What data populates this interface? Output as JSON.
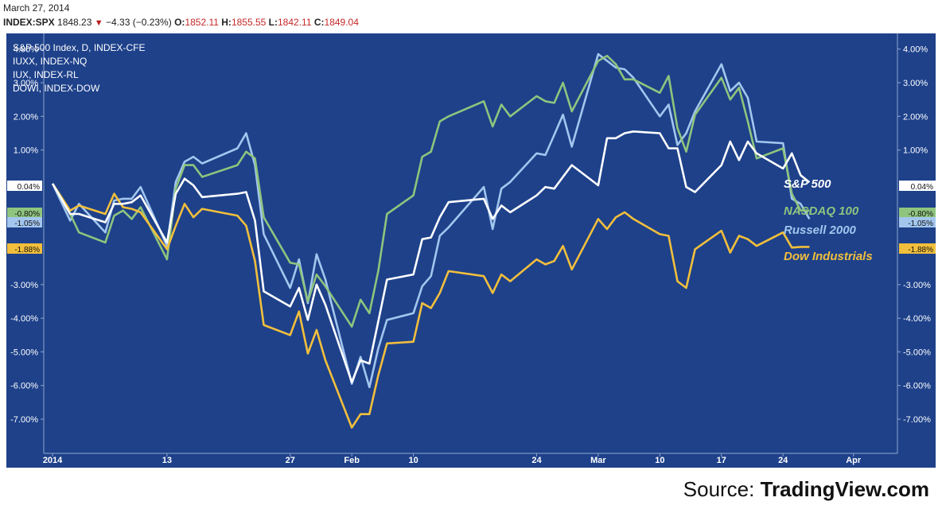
{
  "header": {
    "date": "March 27, 2014",
    "symbol": "INDEX:SPX",
    "last": "1848.23",
    "change": "−4.33 (−0.23%)",
    "open_label": "O:",
    "open": "1852.11",
    "high_label": "H:",
    "high": "1855.55",
    "low_label": "L:",
    "low": "1842.11",
    "close_label": "C:",
    "close": "1849.04"
  },
  "source": {
    "prefix": "Source: ",
    "name": "TradingView.com"
  },
  "colors": {
    "background": "#1e418a",
    "sp500": "#ffffff",
    "nasdaq": "#8fc47e",
    "russell": "#a3c6ef",
    "dow": "#f2bf3c"
  },
  "chart_data": {
    "type": "line",
    "legend_placement": "top-left",
    "legend": [
      "S&P 500 Index, D, INDEX-CFE",
      "IUXX, INDEX-NQ",
      "IUX, INDEX-RL",
      "DOWI, INDEX-DOW"
    ],
    "series_labels_placement": "right",
    "ylim": [
      -8.2,
      4.5
    ],
    "y_ticks": [
      4,
      3,
      2,
      1,
      -3,
      -4,
      -5,
      -6,
      -7
    ],
    "y_tick_labels": [
      "4.00%",
      "3.00%",
      "2.00%",
      "1.00%",
      "-3.00%",
      "-4.00%",
      "-5.00%",
      "-6.00%",
      "-7.00%"
    ],
    "x_tick_labels": [
      {
        "label": "2014",
        "date": "2013-12-31"
      },
      {
        "label": "13",
        "date": "2014-01-13"
      },
      {
        "label": "27",
        "date": "2014-01-27"
      },
      {
        "label": "Feb",
        "date": "2014-02-03"
      },
      {
        "label": "10",
        "date": "2014-02-10"
      },
      {
        "label": "24",
        "date": "2014-02-24"
      },
      {
        "label": "Mar",
        "date": "2014-03-03"
      },
      {
        "label": "10",
        "date": "2014-03-10"
      },
      {
        "label": "17",
        "date": "2014-03-17"
      },
      {
        "label": "24",
        "date": "2014-03-24"
      },
      {
        "label": "Apr",
        "date": "2014-04-01"
      }
    ],
    "xlim": [
      "2013-12-30",
      "2014-04-06"
    ],
    "x": [
      "2013-12-31",
      "2014-01-02",
      "2014-01-03",
      "2014-01-06",
      "2014-01-07",
      "2014-01-08",
      "2014-01-09",
      "2014-01-10",
      "2014-01-13",
      "2014-01-14",
      "2014-01-15",
      "2014-01-16",
      "2014-01-17",
      "2014-01-21",
      "2014-01-22",
      "2014-01-23",
      "2014-01-24",
      "2014-01-27",
      "2014-01-28",
      "2014-01-29",
      "2014-01-30",
      "2014-01-31",
      "2014-02-03",
      "2014-02-04",
      "2014-02-05",
      "2014-02-06",
      "2014-02-07",
      "2014-02-10",
      "2014-02-11",
      "2014-02-12",
      "2014-02-13",
      "2014-02-14",
      "2014-02-18",
      "2014-02-19",
      "2014-02-20",
      "2014-02-21",
      "2014-02-24",
      "2014-02-25",
      "2014-02-26",
      "2014-02-27",
      "2014-02-28",
      "2014-03-03",
      "2014-03-04",
      "2014-03-05",
      "2014-03-06",
      "2014-03-07",
      "2014-03-10",
      "2014-03-11",
      "2014-03-12",
      "2014-03-13",
      "2014-03-14",
      "2014-03-17",
      "2014-03-18",
      "2014-03-19",
      "2014-03-20",
      "2014-03-21",
      "2014-03-24",
      "2014-03-25",
      "2014-03-26",
      "2014-03-27"
    ],
    "series": [
      {
        "name": "S&P 500",
        "end_value_label": "0.04%",
        "values": [
          0.0,
          -0.9,
          -0.9,
          -1.15,
          -0.6,
          -0.6,
          -0.55,
          -0.35,
          -1.75,
          -0.3,
          0.15,
          -0.05,
          -0.4,
          -0.3,
          -0.25,
          -1.1,
          -3.2,
          -3.65,
          -3.1,
          -4.05,
          -3.0,
          -3.6,
          -5.9,
          -5.25,
          -5.35,
          -4.1,
          -2.85,
          -2.7,
          -1.65,
          -1.6,
          -1.0,
          -0.55,
          -0.45,
          -1.05,
          -0.65,
          -0.85,
          -0.35,
          -0.1,
          -0.15,
          0.2,
          0.55,
          -0.05,
          1.35,
          1.35,
          1.5,
          1.55,
          1.5,
          1.05,
          1.05,
          -0.1,
          -0.25,
          0.55,
          1.25,
          0.7,
          1.25,
          0.9,
          0.45,
          0.9,
          0.25,
          0.04
        ]
      },
      {
        "name": "NASDAQ 100",
        "end_value_label": "-0.80%",
        "values": [
          0.0,
          -0.9,
          -1.45,
          -1.75,
          -0.95,
          -0.8,
          -1.05,
          -0.7,
          -2.25,
          -0.15,
          0.55,
          0.55,
          0.2,
          0.55,
          0.95,
          0.75,
          -1.0,
          -2.35,
          -2.4,
          -3.5,
          -2.7,
          -3.05,
          -4.25,
          -3.45,
          -3.85,
          -2.6,
          -0.9,
          -0.35,
          0.8,
          0.95,
          1.85,
          2.0,
          2.45,
          1.7,
          2.35,
          2.0,
          2.6,
          2.45,
          2.4,
          3.0,
          2.15,
          3.65,
          3.8,
          3.55,
          3.1,
          3.1,
          2.7,
          3.2,
          1.65,
          0.95,
          2.05,
          3.15,
          2.5,
          2.85,
          1.85,
          0.75,
          1.05,
          -0.3,
          -0.8,
          -0.8
        ]
      },
      {
        "name": "Russell 2000",
        "end_value_label": "-1.05%",
        "values": [
          0.0,
          -1.1,
          -0.6,
          -1.45,
          -0.5,
          -0.45,
          -0.45,
          -0.1,
          -1.85,
          0.05,
          0.65,
          0.8,
          0.6,
          1.05,
          1.5,
          0.55,
          -1.5,
          -3.1,
          -2.25,
          -3.55,
          -2.1,
          -2.85,
          -5.95,
          -5.15,
          -6.05,
          -4.9,
          -4.05,
          -3.85,
          -3.05,
          -2.75,
          -1.55,
          -1.3,
          -0.1,
          -1.35,
          -0.15,
          0.05,
          0.9,
          0.85,
          1.45,
          2.05,
          1.1,
          3.85,
          3.65,
          3.45,
          3.4,
          3.15,
          2.0,
          2.35,
          1.15,
          1.5,
          2.15,
          3.55,
          2.75,
          3.0,
          2.55,
          1.25,
          1.2,
          -0.45,
          -0.6,
          -1.05
        ]
      },
      {
        "name": "Dow Industrials",
        "end_value_label": "-1.88%",
        "values": [
          0.0,
          -0.8,
          -0.65,
          -0.9,
          -0.3,
          -0.7,
          -0.75,
          -0.85,
          -1.95,
          -1.25,
          -0.6,
          -1.0,
          -0.75,
          -0.95,
          -1.25,
          -2.3,
          -4.2,
          -4.5,
          -3.8,
          -5.05,
          -4.35,
          -5.25,
          -7.25,
          -6.85,
          -6.85,
          -5.7,
          -4.75,
          -4.7,
          -3.55,
          -3.7,
          -3.25,
          -2.6,
          -2.75,
          -3.25,
          -2.7,
          -2.9,
          -2.25,
          -2.4,
          -2.3,
          -1.85,
          -2.55,
          -1.05,
          -1.35,
          -1.0,
          -0.85,
          -1.05,
          -1.5,
          -1.55,
          -2.9,
          -3.1,
          -1.95,
          -1.4,
          -2.05,
          -1.55,
          -1.65,
          -1.85,
          -1.45,
          -1.9,
          -1.88,
          -1.88
        ]
      }
    ]
  }
}
